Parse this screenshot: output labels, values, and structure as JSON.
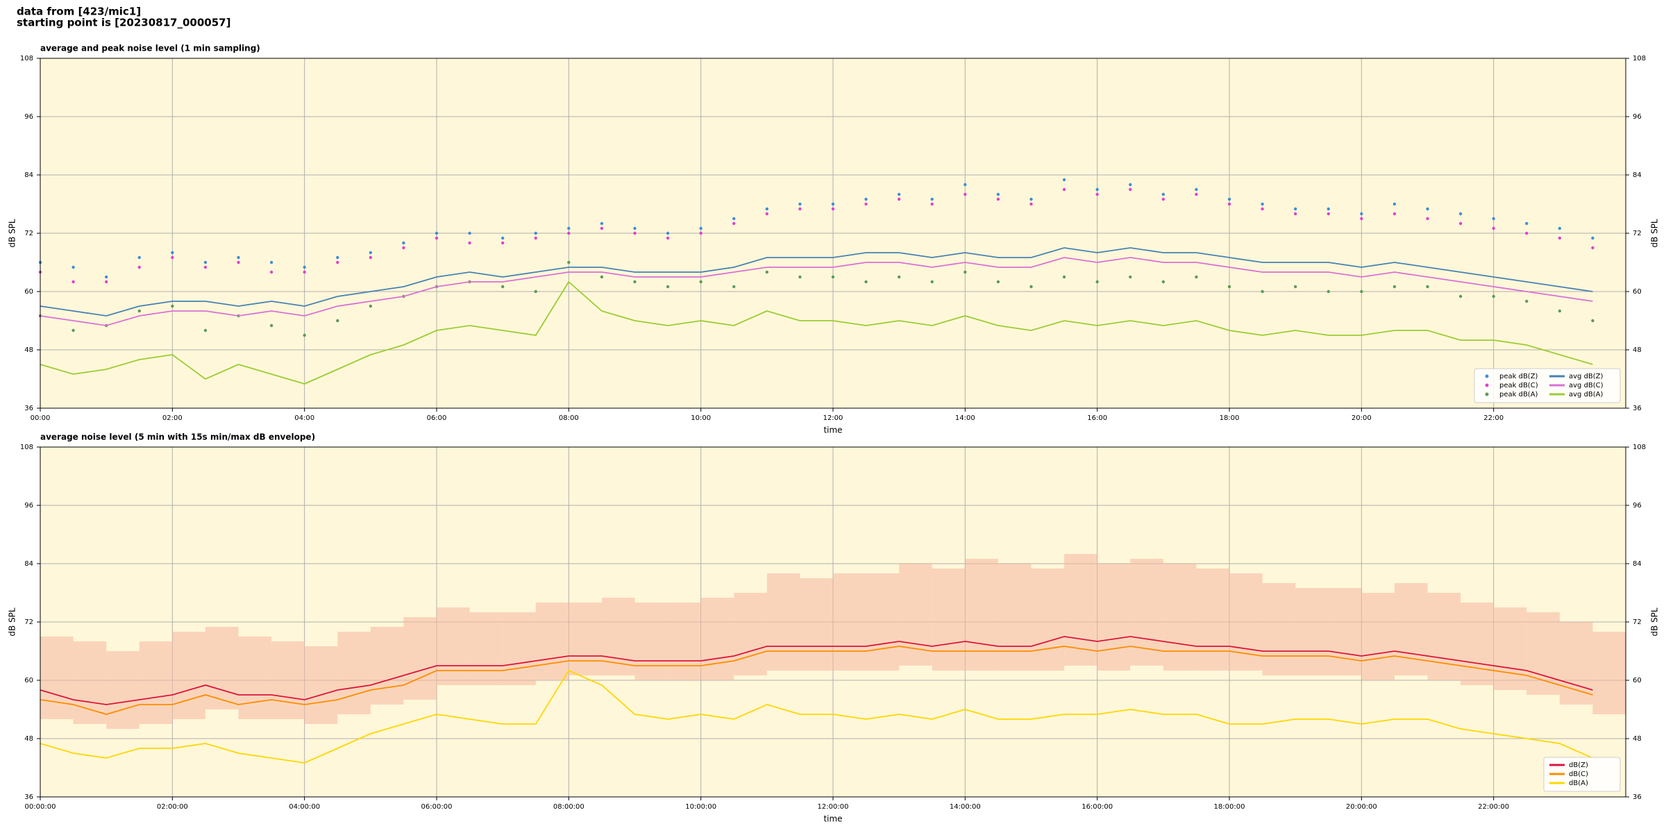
{
  "header": {
    "lines": [
      "data from [423/mic1]",
      "starting point is [20230817_000057]"
    ]
  },
  "chart_data": [
    {
      "type": "line",
      "title": "average and peak noise level (1 min sampling)",
      "xlabel": "time",
      "ylabel": "dB SPL",
      "xlim": [
        0,
        24
      ],
      "ylim": [
        36,
        108
      ],
      "yticks": [
        36,
        48,
        60,
        72,
        84,
        96,
        108
      ],
      "xticks": [
        {
          "value": 0,
          "label": "00:00"
        },
        {
          "value": 2,
          "label": "02:00"
        },
        {
          "value": 4,
          "label": "04:00"
        },
        {
          "value": 6,
          "label": "06:00"
        },
        {
          "value": 8,
          "label": "08:00"
        },
        {
          "value": 10,
          "label": "10:00"
        },
        {
          "value": 12,
          "label": "12:00"
        },
        {
          "value": 14,
          "label": "14:00"
        },
        {
          "value": 16,
          "label": "16:00"
        },
        {
          "value": 18,
          "label": "18:00"
        },
        {
          "value": 20,
          "label": "20:00"
        },
        {
          "value": 22,
          "label": "22:00"
        }
      ],
      "grid": true,
      "background": "#fff7d9",
      "legend": "lower right",
      "legend_columns": 2,
      "x": [
        0,
        0.5,
        1,
        1.5,
        2,
        2.5,
        3,
        3.5,
        4,
        4.5,
        5,
        5.5,
        6,
        6.5,
        7,
        7.5,
        8,
        8.5,
        9,
        9.5,
        10,
        10.5,
        11,
        11.5,
        12,
        12.5,
        13,
        13.5,
        14,
        14.5,
        15,
        15.5,
        16,
        16.5,
        17,
        17.5,
        18,
        18.5,
        19,
        19.5,
        20,
        20.5,
        21,
        21.5,
        22,
        22.5,
        23,
        23.5
      ],
      "series": [
        {
          "name": "peak dB(Z)",
          "type": "scatter",
          "color": "#3b8fd9",
          "values": [
            66,
            65,
            63,
            67,
            68,
            66,
            67,
            66,
            65,
            67,
            68,
            70,
            72,
            72,
            71,
            72,
            73,
            74,
            73,
            72,
            73,
            75,
            77,
            78,
            78,
            79,
            80,
            79,
            82,
            80,
            79,
            83,
            81,
            82,
            80,
            81,
            79,
            78,
            77,
            77,
            76,
            78,
            77,
            76,
            75,
            74,
            73,
            71
          ]
        },
        {
          "name": "peak dB(C)",
          "type": "scatter",
          "color": "#e040d0",
          "values": [
            64,
            62,
            62,
            65,
            67,
            65,
            66,
            64,
            64,
            66,
            67,
            69,
            71,
            70,
            70,
            71,
            72,
            73,
            72,
            71,
            72,
            74,
            76,
            77,
            77,
            78,
            79,
            78,
            80,
            79,
            78,
            81,
            80,
            81,
            79,
            80,
            78,
            77,
            76,
            76,
            75,
            76,
            75,
            74,
            73,
            72,
            71,
            69
          ]
        },
        {
          "name": "peak dB(A)",
          "type": "scatter",
          "color": "#5a9a5a",
          "values": [
            55,
            52,
            53,
            56,
            57,
            52,
            55,
            53,
            51,
            54,
            57,
            59,
            61,
            62,
            61,
            60,
            66,
            63,
            62,
            61,
            62,
            61,
            64,
            63,
            63,
            62,
            63,
            62,
            64,
            62,
            61,
            63,
            62,
            63,
            62,
            63,
            61,
            60,
            61,
            60,
            60,
            61,
            61,
            59,
            59,
            58,
            56,
            54
          ]
        },
        {
          "name": "avg dB(Z)",
          "type": "line",
          "color": "#4682b4",
          "values": [
            57,
            56,
            55,
            57,
            58,
            58,
            57,
            58,
            57,
            59,
            60,
            61,
            63,
            64,
            63,
            64,
            65,
            65,
            64,
            64,
            64,
            65,
            67,
            67,
            67,
            68,
            68,
            67,
            68,
            67,
            67,
            69,
            68,
            69,
            68,
            68,
            67,
            66,
            66,
            66,
            65,
            66,
            65,
            64,
            63,
            62,
            61,
            60
          ]
        },
        {
          "name": "avg dB(C)",
          "type": "line",
          "color": "#da70d6",
          "values": [
            55,
            54,
            53,
            55,
            56,
            56,
            55,
            56,
            55,
            57,
            58,
            59,
            61,
            62,
            62,
            63,
            64,
            64,
            63,
            63,
            63,
            64,
            65,
            65,
            65,
            66,
            66,
            65,
            66,
            65,
            65,
            67,
            66,
            67,
            66,
            66,
            65,
            64,
            64,
            64,
            63,
            64,
            63,
            62,
            61,
            60,
            59,
            58
          ]
        },
        {
          "name": "avg dB(A)",
          "type": "line",
          "color": "#9acd32",
          "values": [
            45,
            43,
            44,
            46,
            47,
            42,
            45,
            43,
            41,
            44,
            47,
            49,
            52,
            53,
            52,
            51,
            62,
            56,
            54,
            53,
            54,
            53,
            56,
            54,
            54,
            53,
            54,
            53,
            55,
            53,
            52,
            54,
            53,
            54,
            53,
            54,
            52,
            51,
            52,
            51,
            51,
            52,
            52,
            50,
            50,
            49,
            47,
            45
          ]
        }
      ]
    },
    {
      "type": "line",
      "title": "average noise level (5 min with 15s min/max dB envelope)",
      "xlabel": "time",
      "ylabel": "dB SPL",
      "xlim": [
        0,
        24
      ],
      "ylim": [
        36,
        108
      ],
      "yticks": [
        36,
        48,
        60,
        72,
        84,
        96,
        108
      ],
      "xticks": [
        {
          "value": 0,
          "label": "00:00:00"
        },
        {
          "value": 2,
          "label": "02:00:00"
        },
        {
          "value": 4,
          "label": "04:00:00"
        },
        {
          "value": 6,
          "label": "06:00:00"
        },
        {
          "value": 8,
          "label": "08:00:00"
        },
        {
          "value": 10,
          "label": "10:00:00"
        },
        {
          "value": 12,
          "label": "12:00:00"
        },
        {
          "value": 14,
          "label": "14:00:00"
        },
        {
          "value": 16,
          "label": "16:00:00"
        },
        {
          "value": 18,
          "label": "18:00:00"
        },
        {
          "value": 20,
          "label": "20:00:00"
        },
        {
          "value": 22,
          "label": "22:00:00"
        }
      ],
      "grid": true,
      "background": "#fff7d9",
      "legend": "lower right",
      "legend_columns": 1,
      "x": [
        0,
        0.5,
        1,
        1.5,
        2,
        2.5,
        3,
        3.5,
        4,
        4.5,
        5,
        5.5,
        6,
        6.5,
        7,
        7.5,
        8,
        8.5,
        9,
        9.5,
        10,
        10.5,
        11,
        11.5,
        12,
        12.5,
        13,
        13.5,
        14,
        14.5,
        15,
        15.5,
        16,
        16.5,
        17,
        17.5,
        18,
        18.5,
        19,
        19.5,
        20,
        20.5,
        21,
        21.5,
        22,
        22.5,
        23,
        23.5
      ],
      "envelope": {
        "color": "#f5b8a0",
        "lower": [
          52,
          51,
          50,
          51,
          52,
          54,
          52,
          52,
          51,
          53,
          55,
          56,
          59,
          59,
          59,
          60,
          61,
          61,
          60,
          60,
          60,
          61,
          62,
          62,
          62,
          62,
          63,
          62,
          62,
          62,
          62,
          63,
          62,
          63,
          62,
          62,
          62,
          61,
          61,
          61,
          60,
          61,
          60,
          59,
          58,
          57,
          55,
          53
        ],
        "upper": [
          69,
          68,
          66,
          68,
          70,
          71,
          69,
          68,
          67,
          70,
          71,
          73,
          75,
          74,
          74,
          76,
          76,
          77,
          76,
          76,
          77,
          78,
          82,
          81,
          82,
          82,
          84,
          83,
          85,
          84,
          83,
          86,
          84,
          85,
          84,
          83,
          82,
          80,
          79,
          79,
          78,
          80,
          78,
          76,
          75,
          74,
          72,
          70
        ]
      },
      "series": [
        {
          "name": "dB(Z)",
          "type": "line",
          "color": "#dc143c",
          "values": [
            58,
            56,
            55,
            56,
            57,
            59,
            57,
            57,
            56,
            58,
            59,
            61,
            63,
            63,
            63,
            64,
            65,
            65,
            64,
            64,
            64,
            65,
            67,
            67,
            67,
            67,
            68,
            67,
            68,
            67,
            67,
            69,
            68,
            69,
            68,
            67,
            67,
            66,
            66,
            66,
            65,
            66,
            65,
            64,
            63,
            62,
            60,
            58
          ]
        },
        {
          "name": "dB(C)",
          "type": "line",
          "color": "#ff8c00",
          "values": [
            56,
            55,
            53,
            55,
            55,
            57,
            55,
            56,
            55,
            56,
            58,
            59,
            62,
            62,
            62,
            63,
            64,
            64,
            63,
            63,
            63,
            64,
            66,
            66,
            66,
            66,
            67,
            66,
            66,
            66,
            66,
            67,
            66,
            67,
            66,
            66,
            66,
            65,
            65,
            65,
            64,
            65,
            64,
            63,
            62,
            61,
            59,
            57
          ]
        },
        {
          "name": "dB(A)",
          "type": "line",
          "color": "#ffd700",
          "values": [
            47,
            45,
            44,
            46,
            46,
            47,
            45,
            44,
            43,
            46,
            49,
            51,
            53,
            52,
            51,
            51,
            62,
            59,
            53,
            52,
            53,
            52,
            55,
            53,
            53,
            52,
            53,
            52,
            54,
            52,
            52,
            53,
            53,
            54,
            53,
            53,
            51,
            51,
            52,
            52,
            51,
            52,
            52,
            50,
            49,
            48,
            47,
            44
          ]
        }
      ]
    }
  ]
}
